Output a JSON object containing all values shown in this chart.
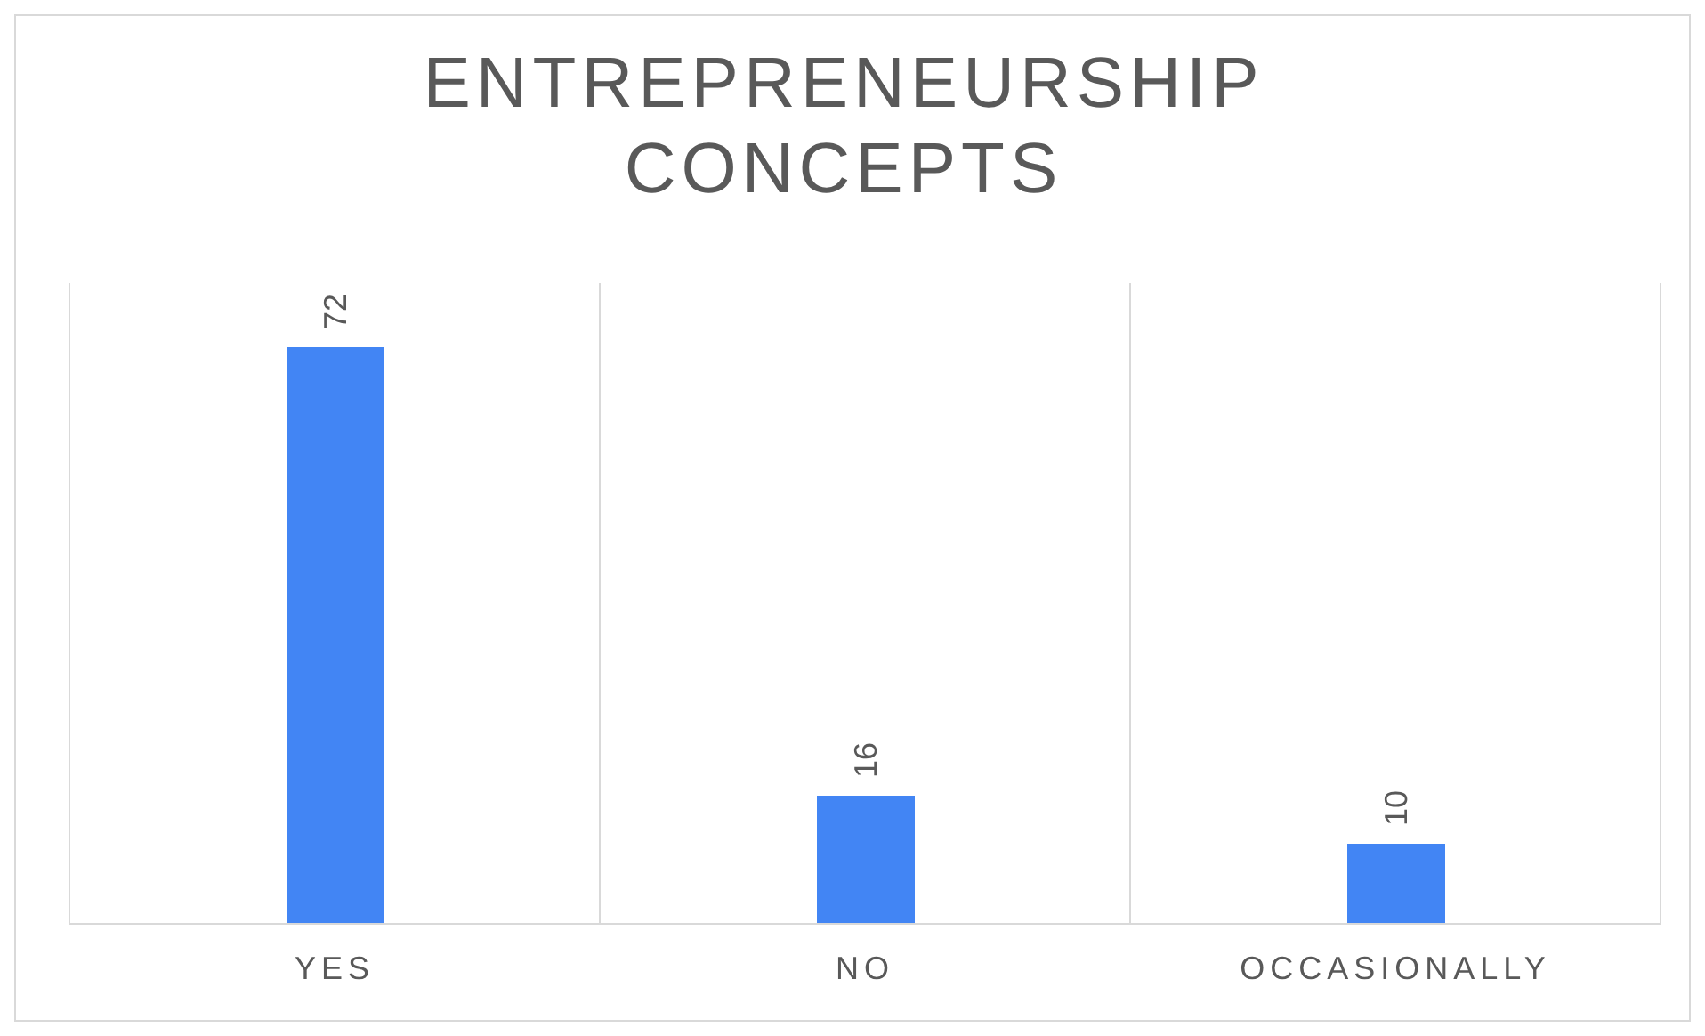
{
  "chart_data": {
    "type": "bar",
    "title": "ENTREPRENEURSHIP CONCEPTS",
    "categories": [
      "YES",
      "NO",
      "OCCASIONALLY"
    ],
    "values": [
      72,
      16,
      10
    ],
    "color": "#4285f4",
    "ylim": [
      0,
      80
    ],
    "data_labels": true,
    "grid": "x",
    "legend": false
  }
}
